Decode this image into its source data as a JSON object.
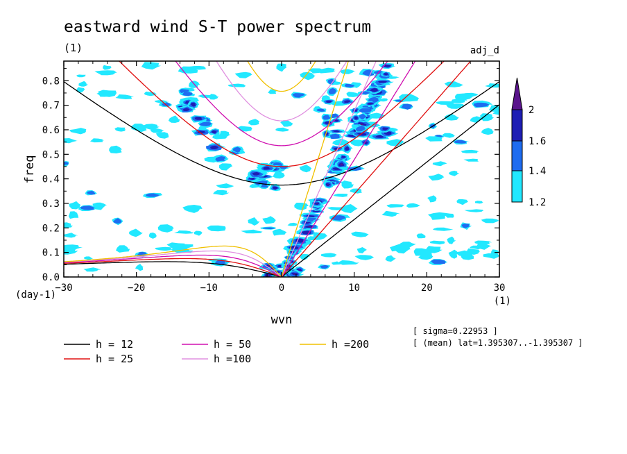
{
  "chart_data": {
    "type": "line",
    "title": "eastward wind S-T power spectrum",
    "subtitle": "(1)",
    "corner_label": "adj_d",
    "xlabel": "wvn",
    "xunit": "(1)",
    "ylabel": "freq",
    "yunit": "(day-1)",
    "xlim": [
      -30,
      30
    ],
    "ylim": [
      0,
      0.88
    ],
    "xticks": [
      -30,
      -20,
      -10,
      0,
      10,
      20,
      30
    ],
    "xtick_labels": [
      "−30",
      "−20",
      "−10",
      "0",
      "10",
      "20",
      "30"
    ],
    "yticks": [
      0,
      0.1,
      0.2,
      0.3,
      0.4,
      0.5,
      0.6,
      0.7,
      0.8
    ],
    "ytick_labels": [
      "0.0",
      "0.1",
      "0.2",
      "0.3",
      "0.4",
      "0.5",
      "0.6",
      "0.7",
      "0.8"
    ],
    "grid": false,
    "colorbar": {
      "levels": [
        1.2,
        1.4,
        1.6,
        2
      ],
      "labels": [
        "1.2",
        "1.4",
        "1.6",
        "2"
      ],
      "colors": [
        "#22e8ff",
        "#1e6cf0",
        "#1e1eb4",
        "#5a148c"
      ]
    },
    "series": [
      {
        "name": "h = 12",
        "h": 12,
        "color": "#000000"
      },
      {
        "name": "h = 25",
        "h": 25,
        "color": "#e01010"
      },
      {
        "name": "h = 50",
        "h": 50,
        "color": "#d010b0"
      },
      {
        "name": "h =100",
        "h": 100,
        "color": "#e090e0"
      },
      {
        "name": "h =200",
        "h": 200,
        "color": "#f0c000"
      }
    ],
    "annotations": [
      "[ sigma=0.22953 ]",
      "[ (mean) lat=1.395307..-1.395307 ]"
    ]
  }
}
